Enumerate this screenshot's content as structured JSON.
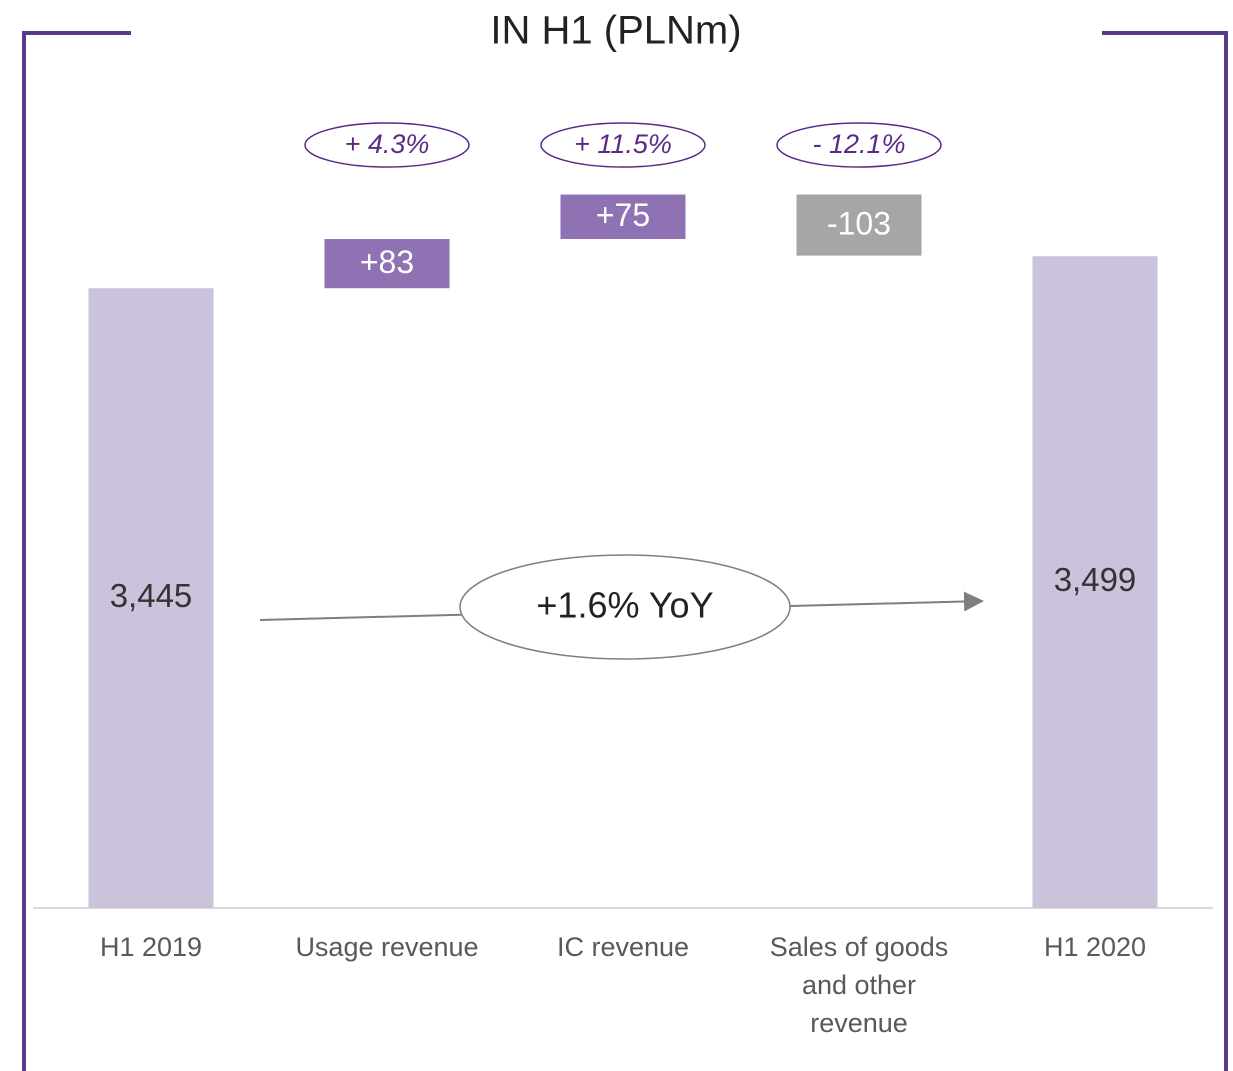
{
  "chart_data": {
    "type": "waterfall",
    "title": "IN H1 (PLNm)",
    "categories": [
      "H1 2019",
      "Usage revenue",
      "IC revenue",
      "Sales of goods and other revenue",
      "H1 2020"
    ],
    "values": [
      3445,
      83,
      75,
      -103,
      3499
    ],
    "value_labels": [
      "3,445",
      "+83",
      "+75",
      "-103",
      "3,499"
    ],
    "colors": [
      "#cbc3dc",
      "#8e72b4",
      "#8e72b4",
      "#a6a6a6",
      "#cbc3dc"
    ],
    "growth_labels": [
      "+ 4.3%",
      "+ 11.5%",
      "- 12.1%"
    ],
    "yoy_label": "+1.6% YoY",
    "ylim": [
      2400,
      3700
    ]
  }
}
